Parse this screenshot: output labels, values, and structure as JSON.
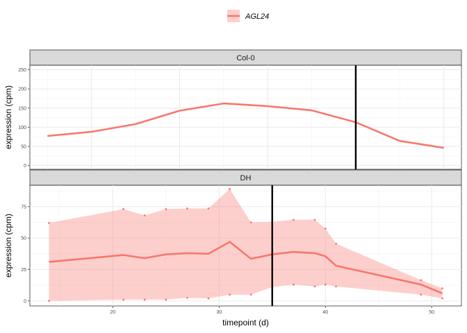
{
  "chart_data": {
    "type": "line",
    "legend": {
      "position": "top",
      "entries": [
        {
          "name": "AGL24",
          "color": "#F8766D"
        }
      ]
    },
    "xlabel": "timepoint (d)",
    "colors": {
      "line": "#F8766D",
      "ribbon": "#F8766D",
      "vline": "#000000",
      "strip_bg": "#D9D9D9"
    },
    "panels": [
      {
        "strip": "Col-0",
        "ylabel": "expression (cpm)",
        "xlim": [
          6.6,
          16.4
        ],
        "ylim": [
          -10,
          262
        ],
        "xticks": [
          8,
          10,
          12,
          14,
          16
        ],
        "yticks": [
          0,
          50,
          100,
          150,
          200,
          250
        ],
        "vline": 14,
        "series": [
          {
            "name": "AGL24",
            "x": [
              7,
              8,
              9,
              10,
              11,
              12,
              13,
              14,
              15,
              16
            ],
            "y": [
              77,
              88,
              108,
              143,
              162,
              155,
              144,
              113,
              64,
              46
            ]
          }
        ]
      },
      {
        "strip": "DH",
        "ylabel": "expression (cpm)",
        "xlim": [
          12.2,
          52.8
        ],
        "ylim": [
          -4,
          92
        ],
        "xticks": [
          20,
          30,
          40,
          50
        ],
        "yticks": [
          0,
          25,
          50,
          75
        ],
        "vline": 35,
        "series": [
          {
            "name": "AGL24",
            "x": [
              14,
              21,
              23,
              25,
              27,
              29,
              31,
              33,
              35,
              37,
              39,
              40,
              41,
              49,
              51
            ],
            "y": [
              31,
              36.5,
              34,
              37,
              38,
              37.5,
              47,
              33.5,
              37,
              39,
              38,
              35.5,
              28,
              13,
              6
            ],
            "ymax": [
              62,
              73,
              68,
              73,
              73.5,
              73.5,
              89,
              62.5,
              63,
              64.5,
              64.5,
              57.5,
              45.5,
              16.5,
              10
            ],
            "ymin": [
              0,
              1,
              1,
              1,
              2.5,
              2,
              5,
              5,
              11,
              13,
              11.5,
              13,
              11.5,
              5,
              2
            ]
          }
        ]
      }
    ]
  }
}
